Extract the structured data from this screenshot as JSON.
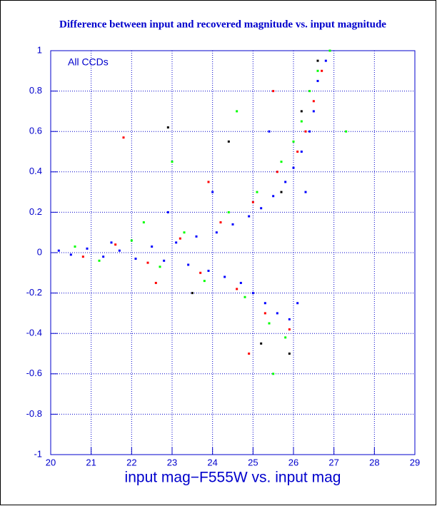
{
  "chart_data": {
    "type": "scatter",
    "title": "Difference between input and recovered magnitude vs. input magnitude",
    "x_label": "input mag−F555W vs. input mag",
    "annotation": "All CCDs",
    "xlim": [
      20,
      29
    ],
    "xticks": [
      20,
      21,
      22,
      23,
      24,
      25,
      26,
      27,
      28,
      29
    ],
    "ylim": [
      -1,
      1
    ],
    "yticks": [
      -1,
      -0.8,
      -0.6,
      -0.4,
      -0.2,
      0,
      0.2,
      0.4,
      0.6,
      0.8,
      1
    ],
    "grid": true,
    "series": [
      {
        "color": "#0000ff",
        "x": [
          20.2,
          20.5,
          20.9,
          21.3,
          21.7,
          22.1,
          22.5,
          22.8,
          23.1,
          23.4,
          23.6,
          23.9,
          24.1,
          24.3,
          24.5,
          24.7,
          24.9,
          25.0,
          25.2,
          25.3,
          25.5,
          25.6,
          25.8,
          25.9,
          26.0,
          26.1,
          26.2,
          26.3,
          26.4,
          26.5,
          26.6,
          26.8,
          24.0,
          22.9,
          25.4,
          21.5
        ],
        "values": [
          0.01,
          -0.01,
          0.02,
          -0.02,
          0.01,
          -0.03,
          0.03,
          -0.04,
          0.05,
          -0.06,
          0.08,
          -0.09,
          0.1,
          -0.12,
          0.14,
          -0.15,
          0.18,
          -0.2,
          0.22,
          -0.25,
          0.28,
          -0.3,
          0.35,
          -0.33,
          0.42,
          -0.25,
          0.5,
          0.3,
          0.6,
          0.7,
          0.85,
          0.95,
          0.3,
          0.2,
          0.6,
          0.05
        ]
      },
      {
        "color": "#00ff00",
        "x": [
          20.6,
          21.2,
          22.0,
          22.7,
          23.3,
          23.8,
          24.4,
          24.8,
          25.1,
          25.4,
          25.7,
          25.8,
          26.0,
          26.2,
          26.4,
          26.6,
          26.9,
          25.5,
          23.0,
          24.6,
          27.3,
          22.3
        ],
        "values": [
          0.03,
          -0.04,
          0.06,
          -0.07,
          0.1,
          -0.14,
          0.2,
          -0.22,
          0.3,
          -0.35,
          0.45,
          -0.42,
          0.55,
          0.65,
          0.8,
          0.9,
          1,
          -0.6,
          0.45,
          0.7,
          0.6,
          0.15
        ]
      },
      {
        "color": "#ff0000",
        "x": [
          20.8,
          21.6,
          22.4,
          23.2,
          23.7,
          24.2,
          24.6,
          25.0,
          25.3,
          25.6,
          25.9,
          26.1,
          26.3,
          26.5,
          26.7,
          21.8,
          24.9,
          22.6,
          25.5,
          23.9
        ],
        "values": [
          -0.02,
          0.04,
          -0.05,
          0.07,
          -0.1,
          0.15,
          -0.18,
          0.25,
          -0.3,
          0.4,
          -0.38,
          0.5,
          0.6,
          0.75,
          0.9,
          0.57,
          -0.5,
          -0.15,
          0.8,
          0.35
        ]
      },
      {
        "color": "#000000",
        "x": [
          22.9,
          24.4,
          25.2,
          25.7,
          26.2,
          26.6,
          23.5,
          25.9
        ],
        "values": [
          0.62,
          0.55,
          -0.45,
          0.3,
          0.7,
          0.95,
          -0.2,
          -0.5
        ]
      }
    ]
  }
}
